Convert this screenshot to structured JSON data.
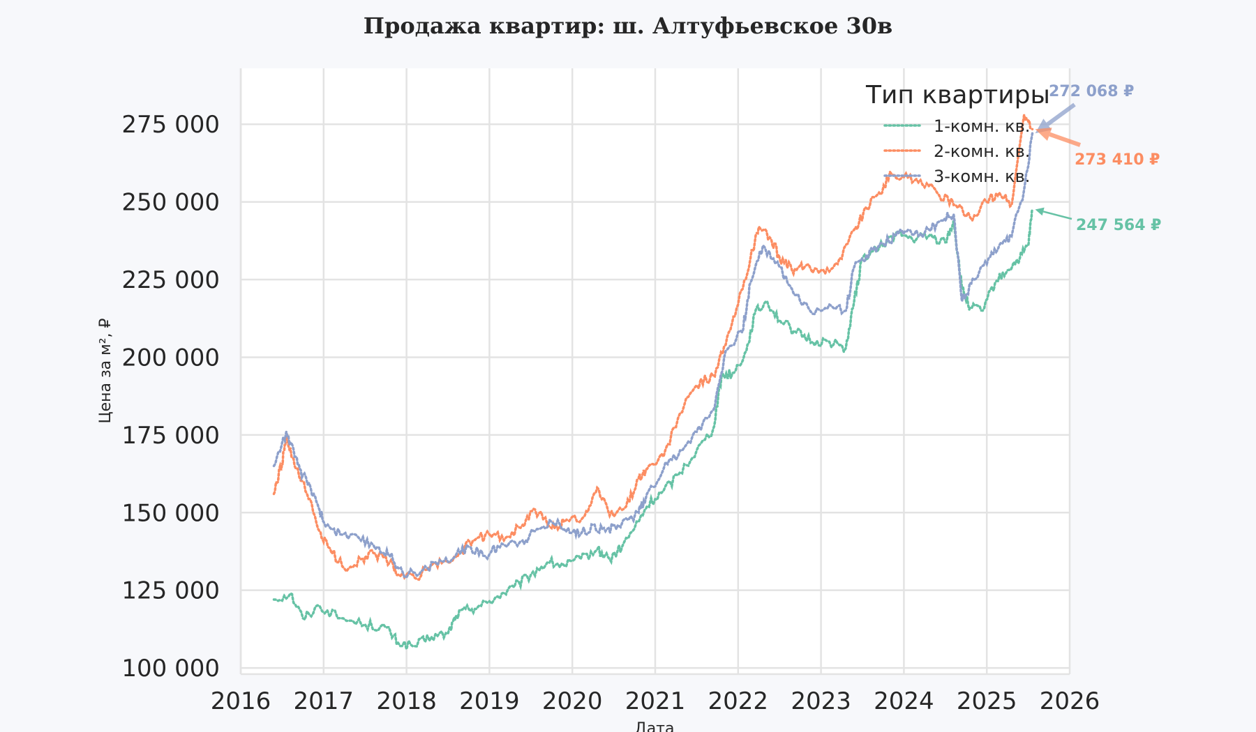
{
  "chart_data": {
    "type": "line",
    "title": "Продажа квартир: ш. Алтуфьевское 30в",
    "xlabel": "Дата",
    "ylabel": "Цена за м², ₽",
    "xlim": [
      2016,
      2026
    ],
    "ylim": [
      98000,
      293000
    ],
    "x_ticks": [
      2016,
      2017,
      2018,
      2019,
      2020,
      2021,
      2022,
      2023,
      2024,
      2025,
      2026
    ],
    "x_tick_labels": [
      "2016",
      "2017",
      "2018",
      "2019",
      "2020",
      "2021",
      "2022",
      "2023",
      "2024",
      "2025",
      "2026"
    ],
    "y_ticks": [
      100000,
      125000,
      150000,
      175000,
      200000,
      225000,
      250000,
      275000
    ],
    "y_tick_labels": [
      "100 000",
      "125 000",
      "150 000",
      "175 000",
      "200 000",
      "225 000",
      "250 000",
      "275 000"
    ],
    "grid": true,
    "line_style": "dotted",
    "legend": {
      "title": "Тип квартиры",
      "position": "top-right"
    },
    "series": [
      {
        "name": "1-комн. кв.",
        "color": "#66c2a5",
        "points": [
          [
            2016.4,
            122000
          ],
          [
            2016.6,
            124000
          ],
          [
            2016.75,
            116000
          ],
          [
            2016.95,
            120000
          ],
          [
            2017.2,
            116000
          ],
          [
            2017.5,
            114000
          ],
          [
            2017.75,
            113000
          ],
          [
            2017.9,
            108000
          ],
          [
            2018.1,
            107000
          ],
          [
            2018.3,
            110000
          ],
          [
            2018.5,
            111000
          ],
          [
            2018.6,
            117000
          ],
          [
            2018.75,
            119000
          ],
          [
            2018.9,
            120000
          ],
          [
            2019.1,
            123000
          ],
          [
            2019.3,
            126000
          ],
          [
            2019.5,
            130000
          ],
          [
            2019.7,
            134000
          ],
          [
            2019.9,
            133000
          ],
          [
            2020.1,
            135000
          ],
          [
            2020.3,
            138000
          ],
          [
            2020.45,
            135000
          ],
          [
            2020.6,
            139000
          ],
          [
            2020.8,
            147000
          ],
          [
            2020.9,
            152000
          ],
          [
            2021.1,
            157000
          ],
          [
            2021.3,
            163000
          ],
          [
            2021.5,
            170000
          ],
          [
            2021.7,
            177000
          ],
          [
            2021.8,
            194000
          ],
          [
            2021.95,
            195000
          ],
          [
            2022.1,
            202000
          ],
          [
            2022.2,
            214000
          ],
          [
            2022.35,
            218000
          ],
          [
            2022.5,
            212000
          ],
          [
            2022.7,
            208000
          ],
          [
            2022.9,
            205000
          ],
          [
            2023.1,
            205000
          ],
          [
            2023.3,
            203000
          ],
          [
            2023.4,
            218000
          ],
          [
            2023.5,
            232000
          ],
          [
            2023.7,
            235000
          ],
          [
            2023.9,
            240000
          ],
          [
            2024.1,
            238000
          ],
          [
            2024.3,
            239000
          ],
          [
            2024.5,
            237000
          ],
          [
            2024.6,
            244000
          ],
          [
            2024.7,
            222000
          ],
          [
            2024.8,
            216000
          ],
          [
            2024.95,
            215000
          ],
          [
            2025.1,
            224000
          ],
          [
            2025.25,
            228000
          ],
          [
            2025.4,
            232000
          ],
          [
            2025.5,
            236000
          ],
          [
            2025.55,
            247564
          ]
        ]
      },
      {
        "name": "2-комн. кв.",
        "color": "#fc8d62",
        "points": [
          [
            2016.4,
            156000
          ],
          [
            2016.5,
            166000
          ],
          [
            2016.55,
            174000
          ],
          [
            2016.65,
            165000
          ],
          [
            2016.8,
            156000
          ],
          [
            2016.95,
            144000
          ],
          [
            2017.05,
            139000
          ],
          [
            2017.25,
            132000
          ],
          [
            2017.45,
            135000
          ],
          [
            2017.6,
            137000
          ],
          [
            2017.8,
            134000
          ],
          [
            2017.9,
            130000
          ],
          [
            2018.1,
            129000
          ],
          [
            2018.3,
            133000
          ],
          [
            2018.5,
            134000
          ],
          [
            2018.65,
            137000
          ],
          [
            2018.8,
            141000
          ],
          [
            2019.0,
            143000
          ],
          [
            2019.2,
            142000
          ],
          [
            2019.4,
            146000
          ],
          [
            2019.55,
            151000
          ],
          [
            2019.75,
            145000
          ],
          [
            2019.9,
            147000
          ],
          [
            2020.15,
            149000
          ],
          [
            2020.3,
            158000
          ],
          [
            2020.45,
            149000
          ],
          [
            2020.65,
            152000
          ],
          [
            2020.8,
            161000
          ],
          [
            2020.9,
            164000
          ],
          [
            2021.1,
            168000
          ],
          [
            2021.3,
            182000
          ],
          [
            2021.5,
            191000
          ],
          [
            2021.7,
            194000
          ],
          [
            2021.85,
            204000
          ],
          [
            2022.0,
            217000
          ],
          [
            2022.15,
            232000
          ],
          [
            2022.25,
            242000
          ],
          [
            2022.4,
            238000
          ],
          [
            2022.5,
            232000
          ],
          [
            2022.65,
            228000
          ],
          [
            2022.8,
            229000
          ],
          [
            2023.0,
            228000
          ],
          [
            2023.2,
            230000
          ],
          [
            2023.4,
            241000
          ],
          [
            2023.55,
            248000
          ],
          [
            2023.7,
            253000
          ],
          [
            2023.85,
            259000
          ],
          [
            2024.0,
            258000
          ],
          [
            2024.2,
            257000
          ],
          [
            2024.4,
            253000
          ],
          [
            2024.6,
            249000
          ],
          [
            2024.8,
            245000
          ],
          [
            2025.0,
            250000
          ],
          [
            2025.15,
            253000
          ],
          [
            2025.3,
            249000
          ],
          [
            2025.45,
            278000
          ],
          [
            2025.55,
            273410
          ]
        ]
      },
      {
        "name": "3-комн. кв.",
        "color": "#8da0cb",
        "points": [
          [
            2016.4,
            165000
          ],
          [
            2016.55,
            176000
          ],
          [
            2016.65,
            168000
          ],
          [
            2016.75,
            162000
          ],
          [
            2016.9,
            155000
          ],
          [
            2017.0,
            147000
          ],
          [
            2017.2,
            143000
          ],
          [
            2017.45,
            141000
          ],
          [
            2017.65,
            139000
          ],
          [
            2017.8,
            136000
          ],
          [
            2017.95,
            131000
          ],
          [
            2018.15,
            130000
          ],
          [
            2018.35,
            134000
          ],
          [
            2018.55,
            135000
          ],
          [
            2018.75,
            139000
          ],
          [
            2018.95,
            136000
          ],
          [
            2019.15,
            140000
          ],
          [
            2019.4,
            141000
          ],
          [
            2019.55,
            144000
          ],
          [
            2019.75,
            147000
          ],
          [
            2019.95,
            145000
          ],
          [
            2020.1,
            143000
          ],
          [
            2020.25,
            146000
          ],
          [
            2020.4,
            144000
          ],
          [
            2020.55,
            146000
          ],
          [
            2020.8,
            150000
          ],
          [
            2020.9,
            156000
          ],
          [
            2021.1,
            164000
          ],
          [
            2021.3,
            170000
          ],
          [
            2021.5,
            176000
          ],
          [
            2021.7,
            183000
          ],
          [
            2021.85,
            202000
          ],
          [
            2022.05,
            208000
          ],
          [
            2022.15,
            224000
          ],
          [
            2022.3,
            236000
          ],
          [
            2022.5,
            229000
          ],
          [
            2022.7,
            220000
          ],
          [
            2022.9,
            214000
          ],
          [
            2023.1,
            217000
          ],
          [
            2023.3,
            215000
          ],
          [
            2023.4,
            229000
          ],
          [
            2023.55,
            233000
          ],
          [
            2023.7,
            236000
          ],
          [
            2023.9,
            239000
          ],
          [
            2024.05,
            241000
          ],
          [
            2024.25,
            240000
          ],
          [
            2024.45,
            244000
          ],
          [
            2024.6,
            246000
          ],
          [
            2024.7,
            218000
          ],
          [
            2024.85,
            225000
          ],
          [
            2025.0,
            230000
          ],
          [
            2025.15,
            236000
          ],
          [
            2025.3,
            239000
          ],
          [
            2025.45,
            254000
          ],
          [
            2025.55,
            272068
          ]
        ]
      }
    ],
    "annotations": [
      {
        "text": "272 068 ₽",
        "series": "3-комн. кв."
      },
      {
        "text": "273 410 ₽",
        "series": "2-комн. кв."
      },
      {
        "text": "247 564 ₽",
        "series": "1-комн. кв."
      }
    ]
  }
}
